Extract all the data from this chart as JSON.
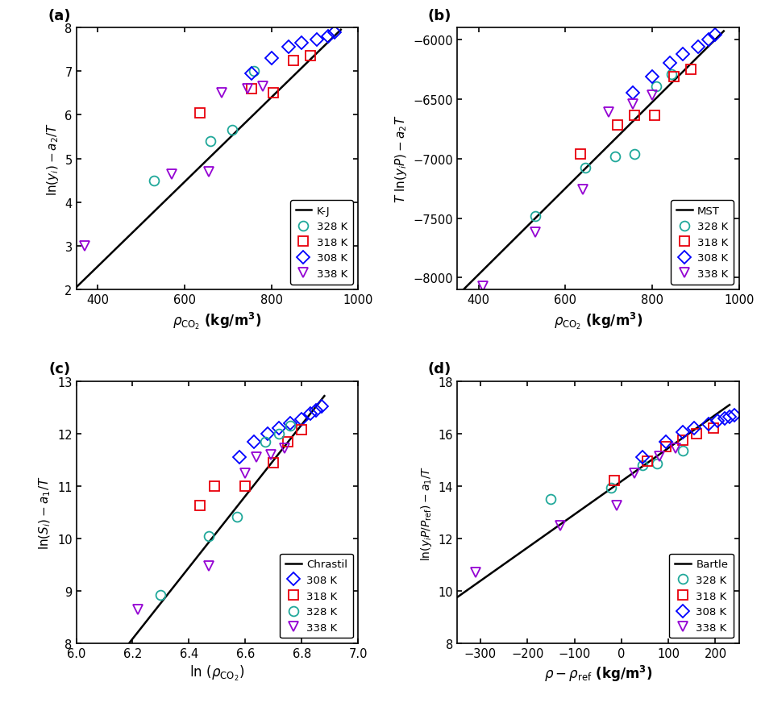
{
  "panel_a": {
    "title": "(a)",
    "xlabel_parts": [
      "rho_co2"
    ],
    "ylabel": "ln(y_i) - a_2/T",
    "xlim": [
      350,
      1000
    ],
    "ylim": [
      2,
      8
    ],
    "xticks": [
      400,
      600,
      800,
      1000
    ],
    "yticks": [
      2,
      3,
      4,
      5,
      6,
      7,
      8
    ],
    "line_x": [
      350,
      960
    ],
    "line_y": [
      2.05,
      7.95
    ],
    "legend_label": "K-J",
    "legend_order": [
      "328K",
      "318K",
      "308K",
      "338K"
    ],
    "data": {
      "328K": {
        "x": [
          530,
          660,
          710,
          760
        ],
        "y": [
          4.5,
          5.4,
          5.65,
          7.0
        ]
      },
      "318K": {
        "x": [
          635,
          755,
          805,
          850,
          890
        ],
        "y": [
          6.05,
          6.6,
          6.5,
          7.25,
          7.35
        ]
      },
      "308K": {
        "x": [
          755,
          800,
          840,
          870,
          905,
          930,
          945
        ],
        "y": [
          6.95,
          7.3,
          7.55,
          7.65,
          7.72,
          7.8,
          7.9
        ]
      },
      "338K": {
        "x": [
          370,
          570,
          655,
          685,
          745,
          780
        ],
        "y": [
          3.0,
          4.65,
          4.7,
          6.5,
          6.6,
          6.65
        ]
      }
    }
  },
  "panel_b": {
    "title": "(b)",
    "xlabel_parts": [
      "rho_co2"
    ],
    "ylabel": "T ln(y_i P) - a_2 T",
    "xlim": [
      350,
      1000
    ],
    "ylim": [
      -8100,
      -5900
    ],
    "xticks": [
      400,
      600,
      800,
      1000
    ],
    "yticks": [
      -8000,
      -7500,
      -7000,
      -6500,
      -6000
    ],
    "line_x": [
      365,
      965
    ],
    "line_y": [
      -8100,
      -5930
    ],
    "legend_label": "MST",
    "legend_order": [
      "328K",
      "318K",
      "308K",
      "338K"
    ],
    "data": {
      "328K": {
        "x": [
          530,
          645,
          715,
          760,
          810,
          845
        ],
        "y": [
          -7480,
          -7080,
          -6980,
          -6960,
          -6390,
          -6290
        ]
      },
      "318K": {
        "x": [
          635,
          720,
          760,
          805,
          850,
          890
        ],
        "y": [
          -6960,
          -6720,
          -6640,
          -6640,
          -6310,
          -6250
        ]
      },
      "308K": {
        "x": [
          755,
          800,
          840,
          870,
          905,
          930,
          945
        ],
        "y": [
          -6450,
          -6310,
          -6200,
          -6120,
          -6060,
          -6000,
          -5960
        ]
      },
      "338K": {
        "x": [
          410,
          530,
          640,
          700,
          755,
          800
        ],
        "y": [
          -8070,
          -7620,
          -7260,
          -6610,
          -6540,
          -6470
        ]
      }
    }
  },
  "panel_c": {
    "title": "(c)",
    "xlabel": "ln_rho_co2",
    "ylabel": "ln(S_i)-a_1/T",
    "xlim": [
      6.0,
      7.0
    ],
    "ylim": [
      8.0,
      13.0
    ],
    "xticks": [
      6.0,
      6.2,
      6.4,
      6.6,
      6.8,
      7.0
    ],
    "yticks": [
      8.0,
      9.0,
      10.0,
      11.0,
      12.0,
      13.0
    ],
    "line_x": [
      6.18,
      6.88
    ],
    "line_y": [
      7.95,
      12.72
    ],
    "legend_label": "Chrastil",
    "legend_order": [
      "308K",
      "318K",
      "328K",
      "338K"
    ],
    "data": {
      "308K": {
        "x": [
          6.58,
          6.63,
          6.68,
          6.72,
          6.76,
          6.8,
          6.83,
          6.85,
          6.87
        ],
        "y": [
          11.55,
          11.85,
          12.0,
          12.1,
          12.2,
          12.28,
          12.38,
          12.45,
          12.52
        ]
      },
      "318K": {
        "x": [
          6.44,
          6.49,
          6.6,
          6.7,
          6.75,
          6.8
        ],
        "y": [
          10.63,
          11.0,
          11.0,
          11.45,
          11.85,
          12.08
        ]
      },
      "328K": {
        "x": [
          6.3,
          6.47,
          6.57,
          6.67,
          6.72,
          6.76
        ],
        "y": [
          8.93,
          10.05,
          10.42,
          11.85,
          12.0,
          12.15
        ]
      },
      "338K": {
        "x": [
          6.22,
          6.47,
          6.6,
          6.64,
          6.69,
          6.74
        ],
        "y": [
          8.65,
          9.48,
          11.25,
          11.55,
          11.6,
          11.72
        ]
      }
    }
  },
  "panel_d": {
    "title": "(d)",
    "xlabel": "rho_minus_rhoref",
    "ylabel": "ln(y_i P/P_ref) - a_1/T",
    "xlim": [
      -350,
      250
    ],
    "ylim": [
      8,
      18
    ],
    "xticks": [
      -300,
      -200,
      -100,
      0,
      100,
      200
    ],
    "yticks": [
      8,
      10,
      12,
      14,
      16,
      18
    ],
    "line_x": [
      -350,
      230
    ],
    "line_y": [
      9.75,
      17.1
    ],
    "legend_label": "Bartle",
    "legend_order": [
      "328K",
      "318K",
      "308K",
      "338K"
    ],
    "data": {
      "328K": {
        "x": [
          -150,
          -22,
          45,
          75,
          130
        ],
        "y": [
          13.5,
          13.95,
          14.8,
          14.85,
          15.35
        ]
      },
      "318K": {
        "x": [
          -15,
          55,
          95,
          130,
          160,
          195
        ],
        "y": [
          14.2,
          14.95,
          15.5,
          15.75,
          16.0,
          16.2
        ]
      },
      "308K": {
        "x": [
          45,
          95,
          130,
          155,
          185,
          205,
          220,
          230,
          240
        ],
        "y": [
          15.1,
          15.7,
          16.05,
          16.2,
          16.38,
          16.5,
          16.58,
          16.63,
          16.7
        ]
      },
      "338K": {
        "x": [
          -310,
          -130,
          -10,
          28,
          80,
          115
        ],
        "y": [
          10.7,
          12.5,
          13.25,
          14.5,
          15.15,
          15.45
        ]
      }
    }
  },
  "colors": {
    "328K": "#20A89A",
    "318K": "#E8000B",
    "308K": "#0000FF",
    "338K": "#9400D3"
  },
  "marker_size": 8.5
}
